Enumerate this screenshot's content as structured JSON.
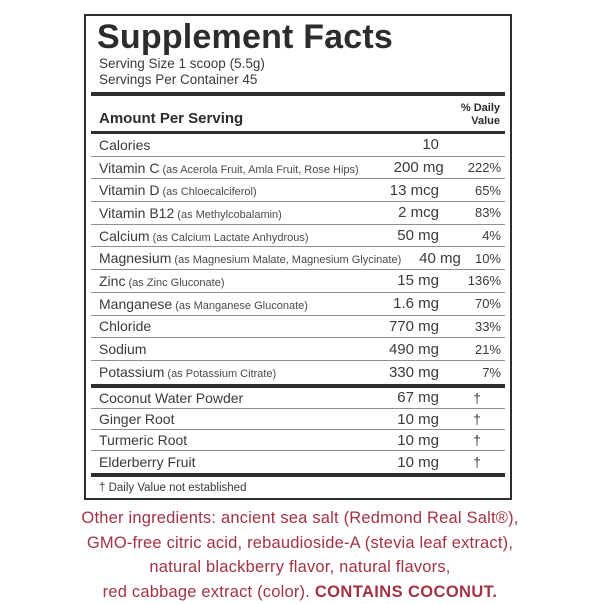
{
  "panel": {
    "title": "Supplement Facts",
    "serving_size": "Serving Size 1 scoop (5.5g)",
    "servings_per_container": "Servings Per Container 45",
    "amount_header": "Amount Per Serving",
    "dv_header": [
      "% Daily",
      "Value"
    ],
    "main_rows": [
      {
        "name": "Calories",
        "detail": "",
        "amount": "10",
        "dv": ""
      },
      {
        "name": "Vitamin C",
        "detail": "(as Acerola Fruit, Amla Fruit, Rose Hips)",
        "amount": "200 mg",
        "dv": "222%"
      },
      {
        "name": "Vitamin D",
        "detail": "(as Chloecalciferol)",
        "amount": "13 mcg",
        "dv": "65%"
      },
      {
        "name": "Vitamin B12",
        "detail": "(as Methylcobalamin)",
        "amount": "2 mcg",
        "dv": "83%"
      },
      {
        "name": "Calcium",
        "detail": "(as Calcium Lactate Anhydrous)",
        "amount": "50 mg",
        "dv": "4%"
      },
      {
        "name": "Magnesium",
        "detail": "(as Magnesium Malate, Magnesium Glycinate)",
        "amount": "40 mg",
        "dv": "10%"
      },
      {
        "name": "Zinc",
        "detail": "(as Zinc Gluconate)",
        "amount": "15 mg",
        "dv": "136%"
      },
      {
        "name": "Manganese",
        "detail": "(as Manganese Gluconate)",
        "amount": "1.6 mg",
        "dv": "70%"
      },
      {
        "name": "Chloride",
        "detail": "",
        "amount": "770 mg",
        "dv": "33%"
      },
      {
        "name": "Sodium",
        "detail": "",
        "amount": "490 mg",
        "dv": "21%"
      },
      {
        "name": "Potassium",
        "detail": "(as Potassium Citrate)",
        "amount": "330 mg",
        "dv": "7%"
      }
    ],
    "botanical_rows": [
      {
        "name": "Coconut Water Powder",
        "detail": "",
        "amount": "67 mg",
        "dv": "†"
      },
      {
        "name": "Ginger Root",
        "detail": "",
        "amount": "10 mg",
        "dv": "†"
      },
      {
        "name": "Turmeric Root",
        "detail": "",
        "amount": "10 mg",
        "dv": "†"
      },
      {
        "name": "Elderberry Fruit",
        "detail": "",
        "amount": "10 mg",
        "dv": "†"
      }
    ],
    "footnote": "† Daily Value not established"
  },
  "other_ingredients": {
    "line1": "Other ingredients: ancient sea salt (Redmond Real Salt®),",
    "line2": "GMO-free citric acid, rebaudioside-A (stevia leaf extract),",
    "line3": "natural blackberry flavor, natural flavors,",
    "line4_prefix": "red cabbage extract (color). ",
    "allergen": "CONTAINS COCONUT."
  },
  "colors": {
    "accent_red": "#a23344",
    "ink": "#2e2e2e",
    "row_line": "#8f8f8f"
  }
}
